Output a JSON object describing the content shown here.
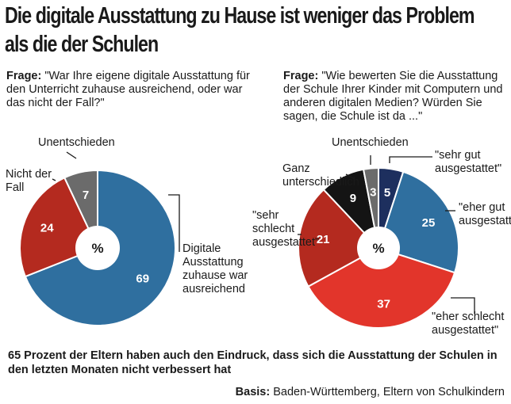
{
  "title": "Die digitale Ausstattung zu Hause ist weniger das Problem als die der Schulen",
  "footnote": "65 Prozent der Eltern haben auch den Eindruck, dass sich die Ausstattung der Schulen in den letzten Monaten nicht verbessert hat",
  "basis": {
    "label": "Basis:",
    "text": "Baden-Württemberg, Eltern von Schulkindern"
  },
  "center_symbol": "%",
  "chart_data": [
    {
      "type": "pie",
      "question_label": "Frage:",
      "question": "\"War Ihre eigene digitale Ausstattung für den Unterricht zuhause ausreichend, oder war das nicht der Fall?\"",
      "unit": "%",
      "slices": [
        {
          "label": "Digitale Ausstattung zuhause war ausreichend",
          "value": 69,
          "color": "#2f6f9f"
        },
        {
          "label": "Nicht der Fall",
          "value": 24,
          "color": "#b42a1f"
        },
        {
          "label": "Unentschieden",
          "value": 7,
          "color": "#6b6b6b"
        }
      ]
    },
    {
      "type": "pie",
      "question_label": "Frage:",
      "question": "\"Wie bewerten Sie die Ausstattung der Schule Ihrer Kinder mit Computern und anderen digitalen Medien? Würden Sie sagen, die Schule ist da ...\"",
      "unit": "%",
      "slices": [
        {
          "label": "\"sehr gut ausgestattet\"",
          "value": 5,
          "color": "#1d2f5e"
        },
        {
          "label": "\"eher gut ausgestattet\"",
          "value": 25,
          "color": "#2f6f9f"
        },
        {
          "label": "\"eher schlecht ausgestattet\"",
          "value": 37,
          "color": "#e2352b"
        },
        {
          "label": "\"sehr schlecht ausgestattet\"",
          "value": 21,
          "color": "#b42a1f"
        },
        {
          "label": "Ganz unterschiedlich",
          "value": 9,
          "color": "#141414"
        },
        {
          "label": "Unentschieden",
          "value": 3,
          "color": "#6b6b6b"
        }
      ]
    }
  ]
}
